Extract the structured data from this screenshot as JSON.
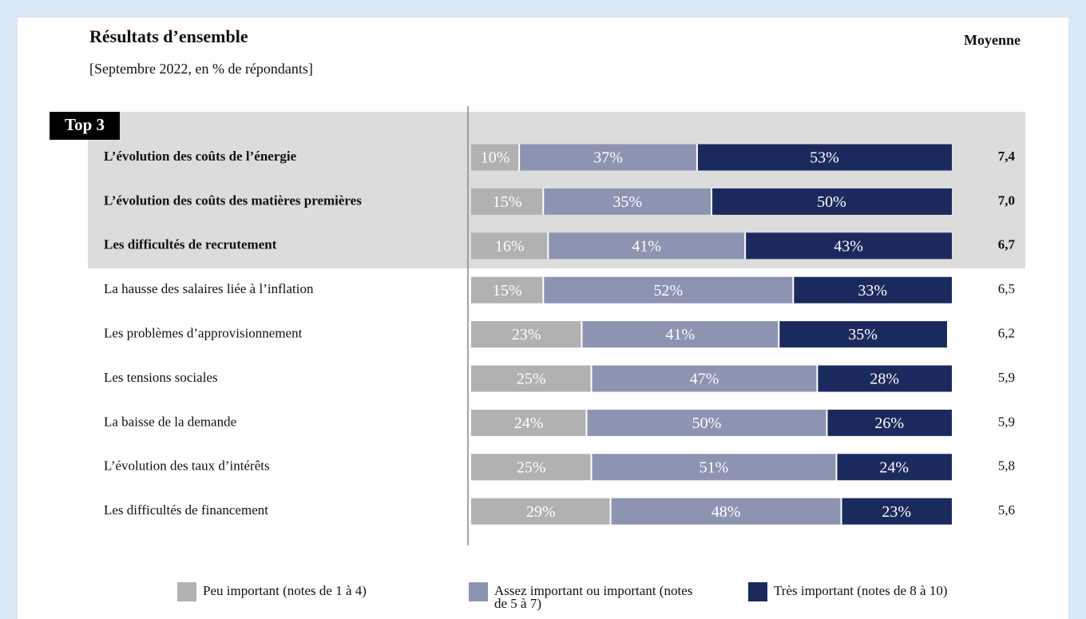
{
  "chart_data": {
    "type": "stacked_barh",
    "title": "Résultats d’ensemble",
    "subtitle": "[Septembre 2022, en % de répondants]",
    "annotation": "Top 3",
    "categories": [
      "L’évolution des coûts de l’énergie",
      "L’évolution des coûts des matières premières",
      "Les difficultés de recrutement",
      "La hausse des salaires liée à l’inflation",
      "Les problèmes d’approvisionnement",
      "Les tensions sociales",
      "La baisse de la demande",
      "L’évolution des taux d’intérêts",
      "Les difficultés de financement"
    ],
    "series": [
      {
        "name": "Peu important (notes de 1 à 4)",
        "color": "#b1b1b1",
        "values": [
          10,
          15,
          16,
          15,
          23,
          25,
          24,
          25,
          29
        ],
        "value_labels": [
          "10%",
          "15%",
          "16%",
          "15%",
          "23%",
          "25%",
          "24%",
          "25%",
          "29%"
        ]
      },
      {
        "name": "Assez important ou important (notes de 5 à 7)",
        "color": "#8c94b2",
        "values": [
          37,
          35,
          41,
          52,
          41,
          47,
          50,
          51,
          48
        ],
        "value_labels": [
          "37%",
          "35%",
          "41%",
          "52%",
          "41%",
          "47%",
          "50%",
          "51%",
          "48%"
        ]
      },
      {
        "name": "Très important (notes de 8 à 10)",
        "color": "#1b2a5e",
        "values": [
          53,
          50,
          43,
          33,
          35,
          28,
          26,
          24,
          23
        ],
        "value_labels": [
          "53%",
          "50%",
          "43%",
          "33%",
          "35%",
          "28%",
          "26%",
          "24%",
          "23%"
        ]
      }
    ],
    "mean": {
      "name": "Moyenne",
      "values": [
        7.4,
        7.0,
        6.7,
        6.5,
        6.2,
        5.9,
        5.9,
        5.8,
        5.6
      ],
      "value_labels": [
        "7,4",
        "7,0",
        "6,7",
        "6,5",
        "6,2",
        "5,9",
        "5,9",
        "5,8",
        "5,6"
      ]
    },
    "xlim": [
      0,
      100
    ]
  }
}
